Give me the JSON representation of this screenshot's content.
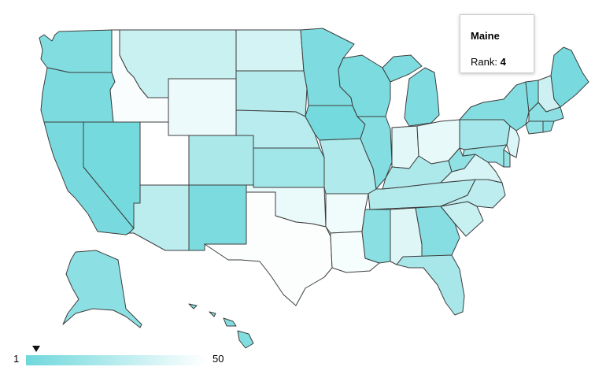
{
  "tooltip": {
    "title": "Maine",
    "rank_label": "Rank: ",
    "rank_value": "4"
  },
  "legend": {
    "min_label": "1",
    "max_label": "50",
    "min_value": 1,
    "max_value": 50,
    "marker_value": 4,
    "color_low": "#6fd8dc",
    "color_high": "#ffffff"
  },
  "states": [
    {
      "name": "Washington",
      "rank": 7
    },
    {
      "name": "Oregon",
      "rank": 5
    },
    {
      "name": "California",
      "rank": 4
    },
    {
      "name": "Nevada",
      "rank": 3
    },
    {
      "name": "Idaho",
      "rank": 48
    },
    {
      "name": "Montana",
      "rank": 32
    },
    {
      "name": "Wyoming",
      "rank": 44
    },
    {
      "name": "Utah",
      "rank": 50
    },
    {
      "name": "Arizona",
      "rank": 27
    },
    {
      "name": "Colorado",
      "rank": 21
    },
    {
      "name": "New Mexico",
      "rank": 5
    },
    {
      "name": "North Dakota",
      "rank": 35
    },
    {
      "name": "South Dakota",
      "rank": 25
    },
    {
      "name": "Nebraska",
      "rank": 26
    },
    {
      "name": "Kansas",
      "rank": 18
    },
    {
      "name": "Oklahoma",
      "rank": 43
    },
    {
      "name": "Texas",
      "rank": 49
    },
    {
      "name": "Minnesota",
      "rank": 6
    },
    {
      "name": "Iowa",
      "rank": 3
    },
    {
      "name": "Missouri",
      "rank": 23
    },
    {
      "name": "Arkansas",
      "rank": 45
    },
    {
      "name": "Louisiana",
      "rank": 47
    },
    {
      "name": "Wisconsin",
      "rank": 5
    },
    {
      "name": "Illinois",
      "rank": 8
    },
    {
      "name": "Michigan",
      "rank": 6
    },
    {
      "name": "Indiana",
      "rank": 40
    },
    {
      "name": "Ohio",
      "rank": 42
    },
    {
      "name": "Kentucky",
      "rank": 22
    },
    {
      "name": "Tennessee",
      "rank": 24
    },
    {
      "name": "Mississippi",
      "rank": 10
    },
    {
      "name": "Alabama",
      "rank": 39
    },
    {
      "name": "Georgia",
      "rank": 9
    },
    {
      "name": "Florida",
      "rank": 20
    },
    {
      "name": "South Carolina",
      "rank": 31
    },
    {
      "name": "North Carolina",
      "rank": 28
    },
    {
      "name": "Virginia",
      "rank": 36
    },
    {
      "name": "West Virginia",
      "rank": 12
    },
    {
      "name": "Pennsylvania",
      "rank": 19
    },
    {
      "name": "New York",
      "rank": 8
    },
    {
      "name": "Maine",
      "rank": 4
    },
    {
      "name": "Vermont",
      "rank": 6
    },
    {
      "name": "New Hampshire",
      "rank": 33
    },
    {
      "name": "Massachusetts",
      "rank": 11
    },
    {
      "name": "Connecticut",
      "rank": 13
    },
    {
      "name": "Rhode Island",
      "rank": 9
    },
    {
      "name": "New Jersey",
      "rank": 38
    },
    {
      "name": "Delaware",
      "rank": 14
    },
    {
      "name": "Maryland",
      "rank": 16
    },
    {
      "name": "Alaska",
      "rank": 11
    },
    {
      "name": "Hawaii",
      "rank": 7
    }
  ]
}
